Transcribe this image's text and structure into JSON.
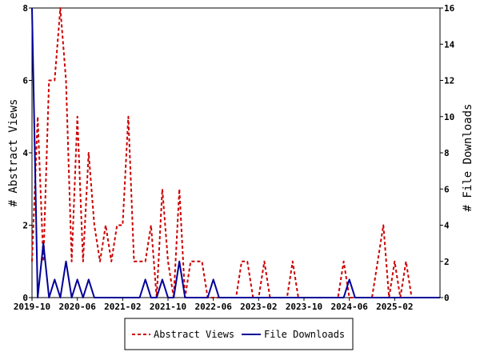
{
  "chart_data": {
    "type": "line",
    "x_tick_labels": [
      "2019-10",
      "2020-06",
      "2021-02",
      "2021-10",
      "2022-06",
      "2023-02",
      "2023-10",
      "2024-06",
      "2025-02"
    ],
    "xlim": [
      "2019-10",
      "2025-10"
    ],
    "y_left": {
      "label": "# Abstract Views",
      "ylim": [
        0,
        8
      ],
      "ticks": [
        "0",
        "2",
        "4",
        "6",
        "8"
      ]
    },
    "y_right": {
      "label": "# File Downloads",
      "ylim": [
        0,
        16
      ],
      "ticks": [
        "0",
        "2",
        "4",
        "6",
        "8",
        "10",
        "12",
        "14",
        "16"
      ]
    },
    "grid": false,
    "legend_position": "bottom-center",
    "series": [
      {
        "name": "Abstract Views",
        "axis": "left",
        "color": "#cc0000",
        "style": "dashed",
        "x": [
          "2019-10",
          "2019-11",
          "2019-12",
          "2020-01",
          "2020-02",
          "2020-03",
          "2020-04",
          "2020-05",
          "2020-06",
          "2020-07",
          "2020-08",
          "2020-09",
          "2020-10",
          "2020-11",
          "2020-12",
          "2021-01",
          "2021-02",
          "2021-03",
          "2021-04",
          "2021-05",
          "2021-06",
          "2021-07",
          "2021-08",
          "2021-09",
          "2021-10",
          "2021-11",
          "2021-12",
          "2022-01",
          "2022-02",
          "2022-03",
          "2022-04",
          "2022-05",
          "2022-06",
          "2022-07",
          "2022-08",
          "2022-09",
          "2022-10",
          "2022-11",
          "2022-12",
          "2023-01",
          "2023-02",
          "2023-03",
          "2023-04",
          "2023-05",
          "2023-06",
          "2023-07",
          "2023-08",
          "2023-09",
          "2023-10",
          "2023-11",
          "2023-12",
          "2024-01",
          "2024-02",
          "2024-03",
          "2024-04",
          "2024-05",
          "2024-06",
          "2024-07",
          "2024-08",
          "2024-09",
          "2024-10",
          "2024-11",
          "2024-12",
          "2025-01",
          "2025-02",
          "2025-03",
          "2025-04",
          "2025-05",
          "2025-06",
          "2025-07",
          "2025-08",
          "2025-09",
          "2025-10"
        ],
        "values": [
          1,
          5,
          1,
          6,
          6,
          8,
          6,
          1,
          5,
          1,
          4,
          2,
          1,
          2,
          1,
          2,
          2,
          5,
          1,
          1,
          1,
          2,
          0,
          3,
          1,
          0,
          3,
          0,
          1,
          1,
          1,
          0,
          0,
          0,
          0,
          0,
          0,
          1,
          1,
          0,
          0,
          1,
          0,
          0,
          0,
          0,
          1,
          0,
          0,
          0,
          0,
          0,
          0,
          0,
          0,
          1,
          0,
          0,
          0,
          0,
          0,
          1,
          2,
          0,
          1,
          0,
          1,
          0,
          0,
          0,
          0,
          0,
          0
        ]
      },
      {
        "name": "File Downloads",
        "axis": "right",
        "color": "#000099",
        "style": "solid",
        "x": [
          "2019-10",
          "2019-11",
          "2019-12",
          "2020-01",
          "2020-02",
          "2020-03",
          "2020-04",
          "2020-05",
          "2020-06",
          "2020-07",
          "2020-08",
          "2020-09",
          "2020-10",
          "2020-11",
          "2020-12",
          "2021-01",
          "2021-02",
          "2021-03",
          "2021-04",
          "2021-05",
          "2021-06",
          "2021-07",
          "2021-08",
          "2021-09",
          "2021-10",
          "2021-11",
          "2021-12",
          "2022-01",
          "2022-02",
          "2022-03",
          "2022-04",
          "2022-05",
          "2022-06",
          "2022-07",
          "2022-08",
          "2022-09",
          "2022-10",
          "2022-11",
          "2022-12",
          "2023-01",
          "2023-02",
          "2023-03",
          "2023-04",
          "2023-05",
          "2023-06",
          "2023-07",
          "2023-08",
          "2023-09",
          "2023-10",
          "2023-11",
          "2023-12",
          "2024-01",
          "2024-02",
          "2024-03",
          "2024-04",
          "2024-05",
          "2024-06",
          "2024-07",
          "2024-08",
          "2024-09",
          "2024-10",
          "2024-11",
          "2024-12",
          "2025-01",
          "2025-02",
          "2025-03",
          "2025-04",
          "2025-05",
          "2025-06",
          "2025-07",
          "2025-08",
          "2025-09",
          "2025-10"
        ],
        "values": [
          16,
          0,
          3,
          0,
          1,
          0,
          2,
          0,
          1,
          0,
          1,
          0,
          0,
          0,
          0,
          0,
          0,
          0,
          0,
          0,
          1,
          0,
          0,
          1,
          0,
          0,
          2,
          0,
          0,
          0,
          0,
          0,
          1,
          0,
          0,
          0,
          0,
          0,
          0,
          0,
          0,
          0,
          0,
          0,
          0,
          0,
          0,
          0,
          0,
          0,
          0,
          0,
          0,
          0,
          0,
          0,
          1,
          0,
          0,
          0,
          0,
          0,
          0,
          0,
          0,
          0,
          0,
          0,
          0,
          0,
          0,
          0,
          0
        ]
      }
    ]
  }
}
